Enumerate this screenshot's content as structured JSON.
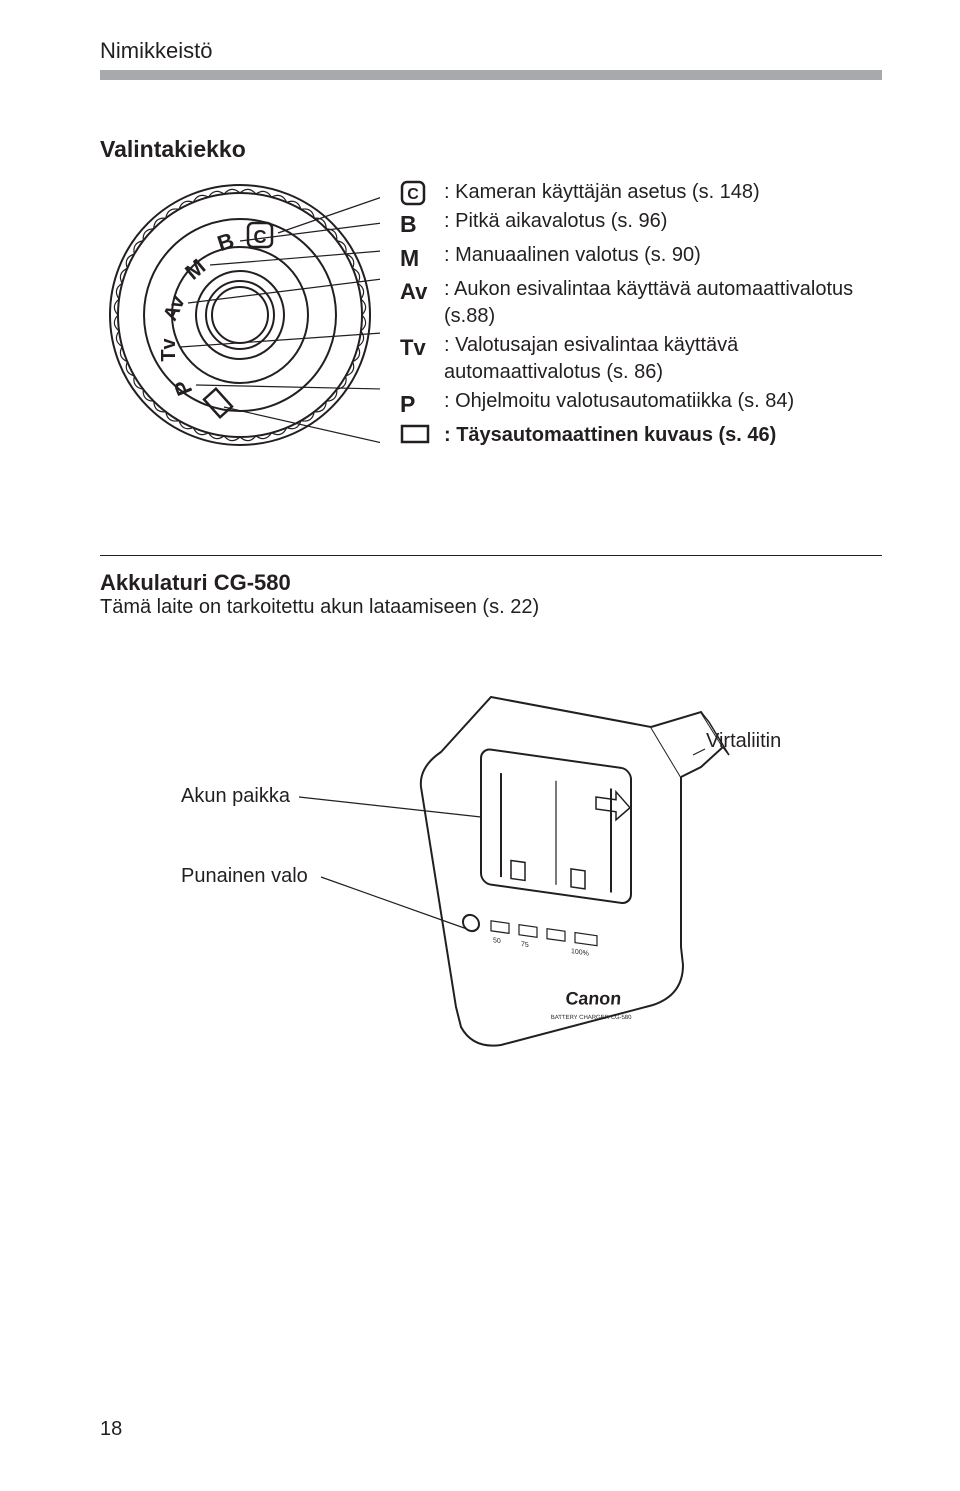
{
  "header": "Nimikkeistö",
  "section_title": "Valintakiekko",
  "modes": [
    {
      "symbol": "C",
      "text": ": Kameran käyttäjän asetus (s. 148)",
      "bold": false,
      "icon": "c-square"
    },
    {
      "symbol": "B",
      "text": ": Pitkä aikavalotus (s. 96)",
      "bold": false,
      "icon": "b"
    },
    {
      "symbol": "M",
      "text": ": Manuaalinen valotus (s. 90)",
      "bold": false,
      "icon": "m"
    },
    {
      "symbol": "Av",
      "text": ": Aukon esivalintaa käyttävä automaattivalotus (s.88)",
      "bold": false,
      "icon": "av"
    },
    {
      "symbol": "Tv",
      "text": ": Valotusajan esivalintaa käyttävä automaattivalotus (s. 86)",
      "bold": false,
      "icon": "tv"
    },
    {
      "symbol": "P",
      "text": ": Ohjelmoitu valotusautomatiikka (s. 84)",
      "bold": false,
      "icon": "p"
    },
    {
      "symbol": "□",
      "text": ": Täysautomaattinen kuvaus (s. 46)",
      "bold": true,
      "icon": "rect"
    }
  ],
  "charger": {
    "title": "Akkulaturi CG-580",
    "subtitle": "Tämä laite on tarkoitettu akun lataamiseen (s. 22)",
    "labels": {
      "battery_slot": "Akun paikka",
      "red_light": "Punainen valo",
      "power_connector": "Virtaliitin"
    }
  },
  "page_number": "18",
  "colors": {
    "text": "#231f20",
    "underline": "#a7a9ac",
    "bg": "#ffffff",
    "stroke": "#231f20",
    "fill_light": "#ffffff",
    "fill_gray": "#d1d3d4"
  }
}
